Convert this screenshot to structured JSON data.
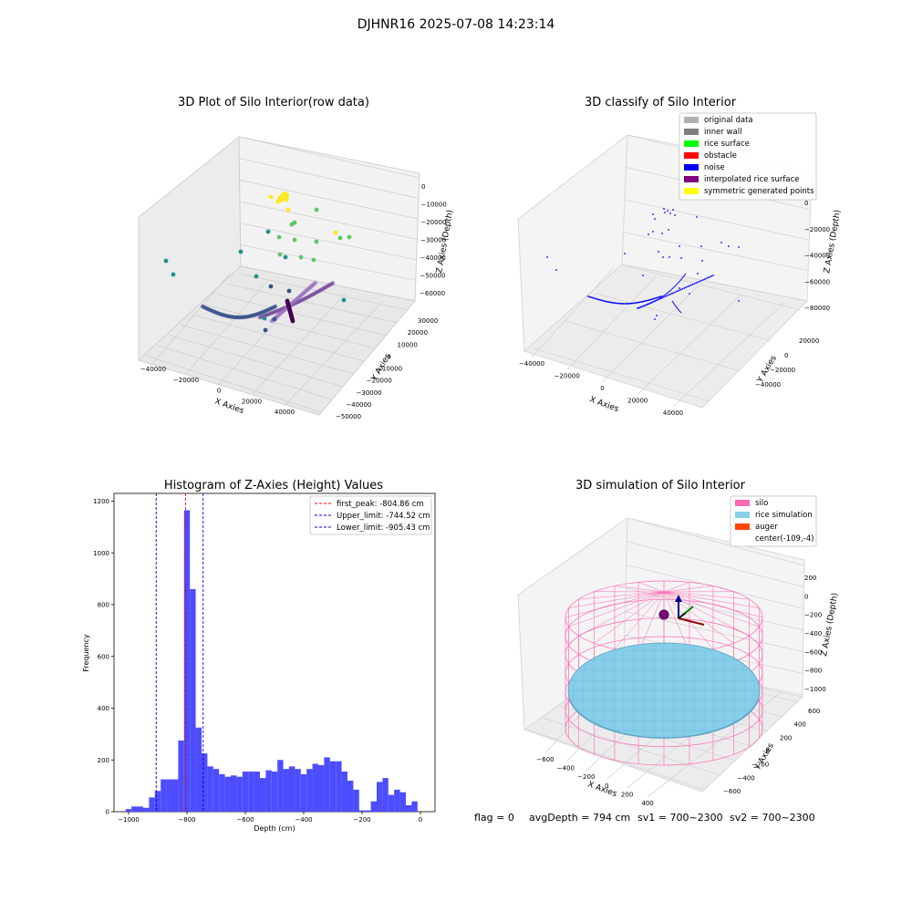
{
  "figure_title": "DJHNR16 2025-07-08 14:23:14",
  "status_line": {
    "flag": "flag = 0",
    "avg_depth": "avgDepth = 794 cm",
    "sv1": "sv1 = 700~2300",
    "sv2": "sv2 = 700~2300"
  },
  "colors": {
    "hist_bar": "#4d4dff",
    "first_peak_line": "#ff0000",
    "limit_line": "#0000cc",
    "pane": "#f2f2f2",
    "silo": "#ff69b4",
    "rice": "#87ceeb",
    "auger": "#ff4500",
    "noise": "#0000ff",
    "interp": "#800080"
  },
  "chart_data": [
    {
      "type": "scatter",
      "projection": "3d",
      "title": "3D Plot of Silo Interior(row data)",
      "xlabel": "X Axies",
      "ylabel": "Y Axies",
      "zlabel": "Z Axies (Depth)",
      "x_ticks": [
        "−40000",
        "−20000",
        "0",
        "20000",
        "40000"
      ],
      "y_ticks": [
        "30000",
        "20000",
        "10000",
        "0",
        "−10000",
        "−20000",
        "−30000",
        "−40000",
        "−50000"
      ],
      "z_ticks": [
        "0",
        "−10000",
        "−20000",
        "−30000",
        "−40000",
        "−50000",
        "−60000"
      ],
      "colormap": "viridis"
    },
    {
      "type": "scatter",
      "projection": "3d",
      "title": "3D classify of Silo Interior",
      "xlabel": "X Axies",
      "ylabel": "Y Axies",
      "zlabel": "Z Axies (Depth)",
      "x_ticks": [
        "−40000",
        "−20000",
        "0",
        "20000",
        "40000"
      ],
      "y_ticks": [
        "20000",
        "0",
        "−20000",
        "−40000"
      ],
      "z_ticks": [
        "0",
        "−20000",
        "−40000",
        "−60000",
        "−80000"
      ],
      "legend": [
        {
          "label": "original data",
          "color": "#b0b0b0"
        },
        {
          "label": "inner wall",
          "color": "#808080"
        },
        {
          "label": "rice surface",
          "color": "#00ff00"
        },
        {
          "label": "obstacle",
          "color": "#ff0000"
        },
        {
          "label": "noise",
          "color": "#0000ff"
        },
        {
          "label": "interpolated rice surface",
          "color": "#800080"
        },
        {
          "label": "symmetric generated points",
          "color": "#ffff00"
        }
      ],
      "legend_position": "top-right"
    },
    {
      "type": "bar",
      "title": "Histogram of Z-Axies (Height) Values",
      "xlabel": "Depth (cm)",
      "ylabel": "Frequency",
      "xlim": [
        -1050,
        50
      ],
      "ylim": [
        0,
        1230
      ],
      "x_ticks": [
        -1000,
        -800,
        -600,
        -400,
        -200,
        0
      ],
      "x_tick_labels": [
        "−1000",
        "−800",
        "−600",
        "−400",
        "−200",
        "0"
      ],
      "y_ticks": [
        0,
        200,
        400,
        600,
        800,
        1000,
        1200
      ],
      "y_tick_labels": [
        "0",
        "200",
        "400",
        "600",
        "800",
        "1000",
        "1200"
      ],
      "bin_start": -1010,
      "bin_width": 20,
      "values": [
        10,
        20,
        20,
        15,
        55,
        80,
        125,
        125,
        125,
        275,
        1165,
        860,
        325,
        225,
        175,
        165,
        145,
        135,
        140,
        135,
        155,
        155,
        155,
        130,
        160,
        155,
        200,
        165,
        175,
        165,
        145,
        165,
        185,
        180,
        210,
        195,
        195,
        155,
        120,
        85,
        5,
        5,
        40,
        115,
        130,
        65,
        85,
        75,
        25,
        40
      ],
      "lines": [
        {
          "label": "first_peak: -804.86 cm",
          "x": -804.86,
          "color": "#ff0000"
        },
        {
          "label": "Upper_limit: -744.52 cm",
          "x": -744.52,
          "color": "#0000cc"
        },
        {
          "label": "Lower_limit: -905.43 cm",
          "x": -905.43,
          "color": "#0000cc"
        }
      ],
      "legend_position": "top-right"
    },
    {
      "type": "surface",
      "projection": "3d",
      "title": "3D simulation of Silo Interior",
      "xlabel": "X Axies",
      "ylabel": "Y Axies",
      "zlabel": "Z Axies (Depth)",
      "x_ticks": [
        "−600",
        "−400",
        "−200",
        "0",
        "200",
        "400"
      ],
      "y_ticks": [
        "600",
        "400",
        "200",
        "0",
        "−200",
        "−400",
        "−600"
      ],
      "z_ticks": [
        "200",
        "0",
        "−200",
        "−400",
        "−600",
        "−800",
        "−1000"
      ],
      "legend": [
        {
          "label": "silo",
          "color": "#ff69b4"
        },
        {
          "label": "rice simulation",
          "color": "#87ceeb"
        },
        {
          "label": "auger",
          "color": "#ff4500"
        },
        {
          "label": "center(-109,-4)",
          "color": ""
        }
      ],
      "legend_position": "top-right"
    }
  ]
}
